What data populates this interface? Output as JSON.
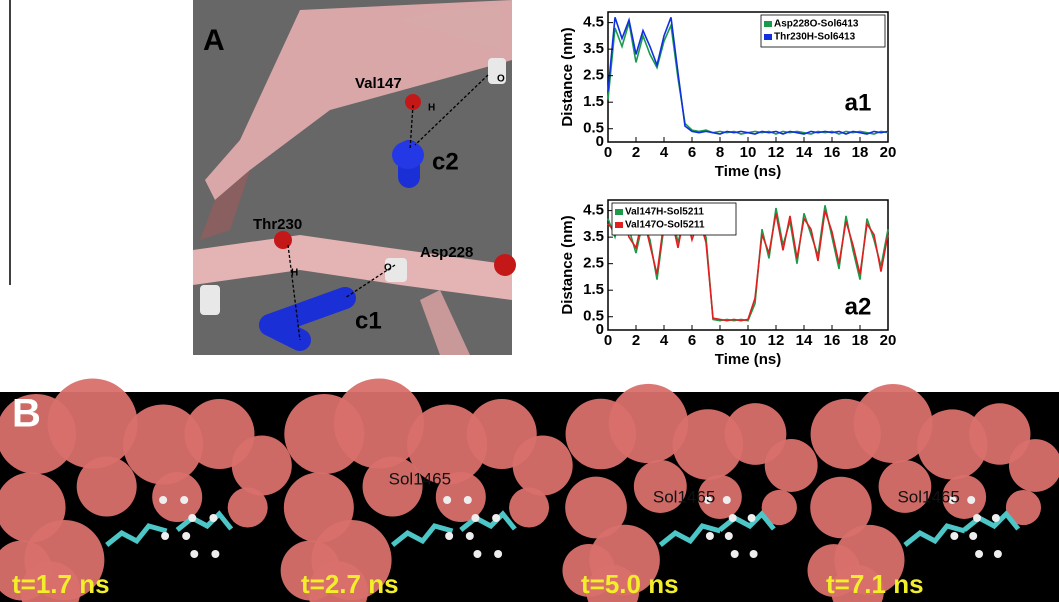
{
  "panel_a": {
    "label": "A",
    "labels": [
      "Val147",
      "O",
      "H",
      "c2",
      "Thr230",
      "H",
      "O",
      "Asp228",
      "c1"
    ]
  },
  "chart_data": [
    {
      "type": "line",
      "x_label": "Time (ns)",
      "y_label": "Distance (nm)",
      "annotation": "a1",
      "legend": "upper right",
      "x": [
        0,
        0.5,
        1,
        1.5,
        2,
        2.5,
        3,
        3.5,
        4,
        4.5,
        5,
        5.5,
        6,
        6.5,
        7,
        7.5,
        8,
        8.5,
        9,
        9.5,
        10,
        10.5,
        11,
        11.5,
        12,
        12.5,
        13,
        13.5,
        14,
        14.5,
        15,
        15.5,
        16,
        16.5,
        17,
        17.5,
        18,
        18.5,
        19,
        19.5,
        20
      ],
      "xlim": [
        0,
        20
      ],
      "xticks": [
        0,
        2,
        4,
        6,
        8,
        10,
        12,
        14,
        16,
        18,
        20
      ],
      "ylim": [
        0,
        4.9
      ],
      "yticks": [
        0,
        0.5,
        1.5,
        2.5,
        3.5,
        4.5
      ],
      "series": [
        {
          "name": "Asp228O-Sol6413",
          "color": "#1a9a4a",
          "values": [
            1.6,
            4.3,
            3.6,
            4.5,
            3.0,
            4.0,
            3.3,
            2.8,
            3.8,
            4.4,
            2.4,
            0.7,
            0.45,
            0.4,
            0.45,
            0.35,
            0.4,
            0.35,
            0.4,
            0.3,
            0.35,
            0.4,
            0.35,
            0.4,
            0.3,
            0.4,
            0.35,
            0.4,
            0.35,
            0.3,
            0.4,
            0.35,
            0.4,
            0.3,
            0.4,
            0.35,
            0.4,
            0.35,
            0.3,
            0.4,
            0.35
          ]
        },
        {
          "name": "Thr230H-Sol6413",
          "color": "#1030e0",
          "values": [
            1.9,
            4.7,
            3.9,
            4.6,
            3.3,
            4.2,
            3.6,
            2.9,
            4.0,
            4.7,
            2.6,
            0.6,
            0.4,
            0.35,
            0.4,
            0.35,
            0.3,
            0.4,
            0.35,
            0.4,
            0.35,
            0.3,
            0.4,
            0.35,
            0.4,
            0.3,
            0.4,
            0.35,
            0.3,
            0.4,
            0.35,
            0.4,
            0.35,
            0.4,
            0.3,
            0.4,
            0.35,
            0.3,
            0.4,
            0.35,
            0.4
          ]
        }
      ]
    },
    {
      "type": "line",
      "x_label": "Time (ns)",
      "y_label": "Distance (nm)",
      "annotation": "a2",
      "legend": "upper left",
      "x": [
        0,
        0.5,
        1,
        1.5,
        2,
        2.5,
        3,
        3.5,
        4,
        4.5,
        5,
        5.5,
        6,
        6.5,
        7,
        7.5,
        8,
        8.5,
        9,
        9.5,
        10,
        10.5,
        11,
        11.5,
        12,
        12.5,
        13,
        13.5,
        14,
        14.5,
        15,
        15.5,
        16,
        16.5,
        17,
        17.5,
        18,
        18.5,
        19,
        19.5,
        20
      ],
      "xlim": [
        0,
        20
      ],
      "xticks": [
        0,
        2,
        4,
        6,
        8,
        10,
        12,
        14,
        16,
        18,
        20
      ],
      "ylim": [
        0,
        4.9
      ],
      "yticks": [
        0,
        0.5,
        1.5,
        2.5,
        3.5,
        4.5
      ],
      "series": [
        {
          "name": "Val147H-Sol5211",
          "color": "#1a9a4a",
          "values": [
            4.2,
            3.5,
            4.6,
            3.8,
            2.9,
            4.1,
            3.4,
            1.9,
            3.9,
            4.5,
            3.3,
            4.3,
            3.6,
            4.0,
            3.5,
            0.4,
            0.35,
            0.4,
            0.35,
            0.4,
            0.35,
            1.0,
            3.8,
            2.7,
            4.6,
            3.2,
            4.1,
            2.5,
            4.4,
            3.6,
            2.8,
            4.7,
            3.5,
            2.3,
            4.3,
            3.0,
            1.9,
            4.2,
            3.4,
            2.4,
            3.8
          ]
        },
        {
          "name": "Val147O-Sol5211",
          "color": "#e02020",
          "values": [
            4.0,
            3.7,
            4.4,
            3.5,
            3.1,
            4.3,
            3.2,
            2.1,
            4.1,
            4.3,
            3.1,
            4.5,
            3.4,
            4.2,
            3.3,
            0.45,
            0.4,
            0.35,
            0.4,
            0.35,
            0.4,
            1.2,
            3.6,
            2.9,
            4.4,
            3.0,
            4.3,
            2.7,
            4.2,
            3.8,
            2.6,
            4.5,
            3.7,
            2.5,
            4.1,
            3.2,
            2.1,
            4.0,
            3.6,
            2.2,
            3.6
          ]
        }
      ]
    }
  ],
  "panel_b": {
    "label": "B",
    "frames": [
      {
        "time": "t=1.7 ns"
      },
      {
        "time": "t=2.7 ns",
        "molecule": "Sol1465"
      },
      {
        "time": "t=5.0 ns",
        "molecule": "Sol1465"
      },
      {
        "time": "t=7.1 ns",
        "molecule": "Sol1465"
      }
    ]
  }
}
